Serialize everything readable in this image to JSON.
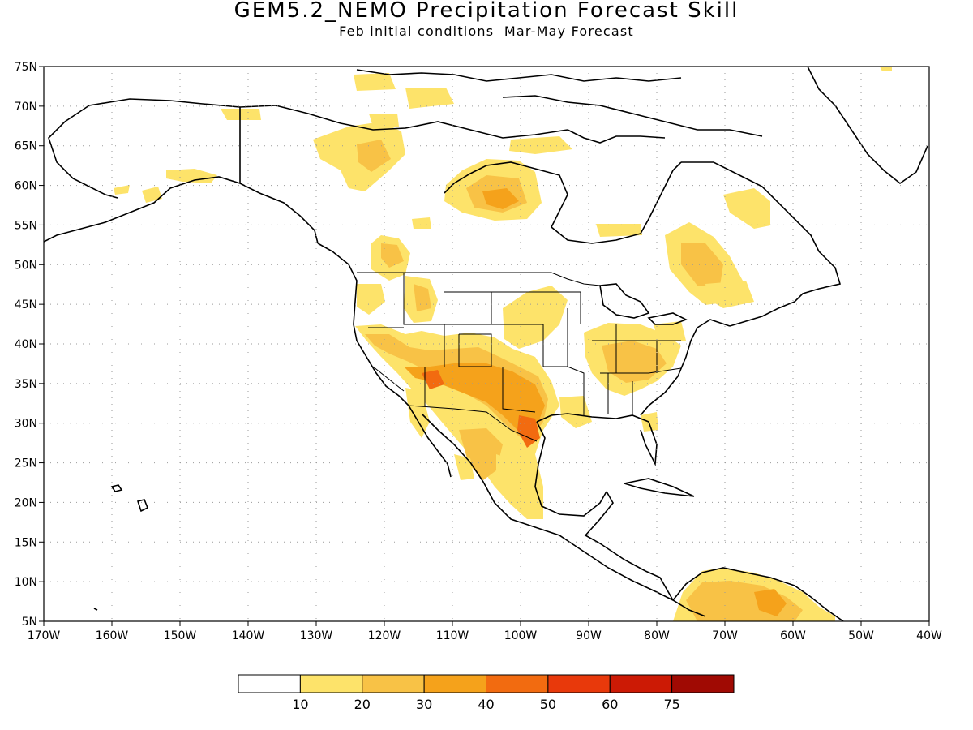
{
  "title": "GEM5.2_NEMO Precipitation Forecast Skill",
  "subtitle": "Feb initial conditions  Mar-May Forecast",
  "lat_axis": {
    "ticks": [
      75,
      70,
      65,
      60,
      55,
      50,
      45,
      40,
      35,
      30,
      25,
      20,
      15,
      10,
      5
    ],
    "labels": [
      "75N",
      "70N",
      "65N",
      "60N",
      "55N",
      "50N",
      "45N",
      "40N",
      "35N",
      "30N",
      "25N",
      "20N",
      "15N",
      "10N",
      "5N"
    ]
  },
  "lon_axis": {
    "ticks": [
      -170,
      -160,
      -150,
      -140,
      -130,
      -120,
      -110,
      -100,
      -90,
      -80,
      -70,
      -60,
      -50,
      -40
    ],
    "labels": [
      "170W",
      "160W",
      "150W",
      "140W",
      "130W",
      "120W",
      "110W",
      "100W",
      "90W",
      "80W",
      "70W",
      "60W",
      "50W",
      "40W"
    ]
  },
  "colorbar": {
    "levels": [
      "10",
      "20",
      "30",
      "40",
      "50",
      "60",
      "75"
    ],
    "colors": [
      "#ffffff",
      "#fde36a",
      "#f8c246",
      "#f5a21b",
      "#f26b10",
      "#e8390b",
      "#cc1a05",
      "#a00a03"
    ]
  },
  "skill_regions": [
    {
      "region": "Texas / northern Mexico",
      "level": "40-50"
    },
    {
      "region": "US Southwest",
      "level": "30-40"
    },
    {
      "region": "Mexico",
      "level": "20-30"
    },
    {
      "region": "Ohio Valley / Southeast US",
      "level": "20-30"
    },
    {
      "region": "Hudson Bay west",
      "level": "20-30"
    },
    {
      "region": "Quebec / Labrador",
      "level": "20-30"
    },
    {
      "region": "Northern South America",
      "level": "20-40"
    }
  ]
}
